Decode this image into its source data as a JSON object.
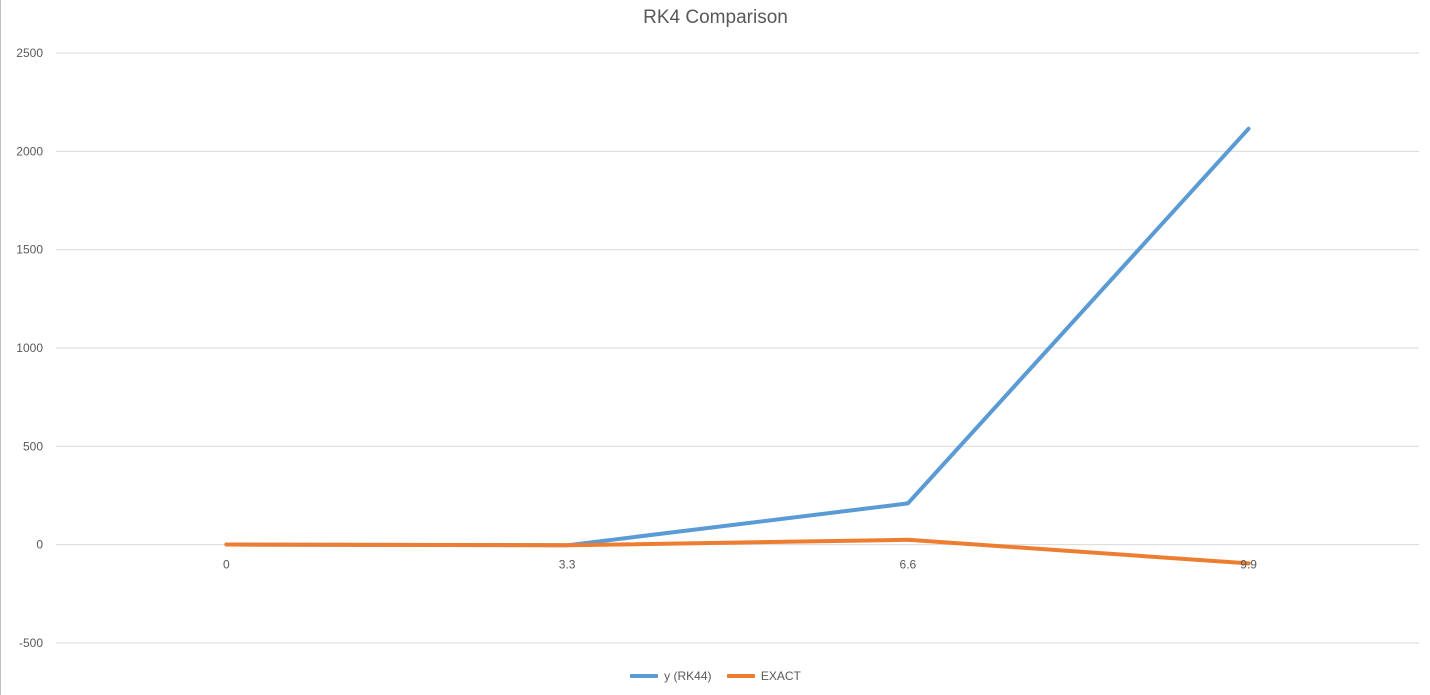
{
  "chart_data": {
    "type": "line",
    "title": "RK4 Comparison",
    "xlabel": "",
    "ylabel": "",
    "categories": [
      "0",
      "3.3",
      "6.6",
      "9.9"
    ],
    "ylim": [
      -500,
      2500
    ],
    "yticks": [
      -500,
      0,
      500,
      1000,
      1500,
      2000,
      2500
    ],
    "grid": true,
    "legend_position": "bottom",
    "series": [
      {
        "name": "y (RK44)",
        "color": "#5b9bd5",
        "values": [
          1,
          -3,
          210,
          2115
        ]
      },
      {
        "name": "EXACT",
        "color": "#ed7d31",
        "values": [
          1,
          -3,
          25,
          -95
        ]
      }
    ]
  }
}
